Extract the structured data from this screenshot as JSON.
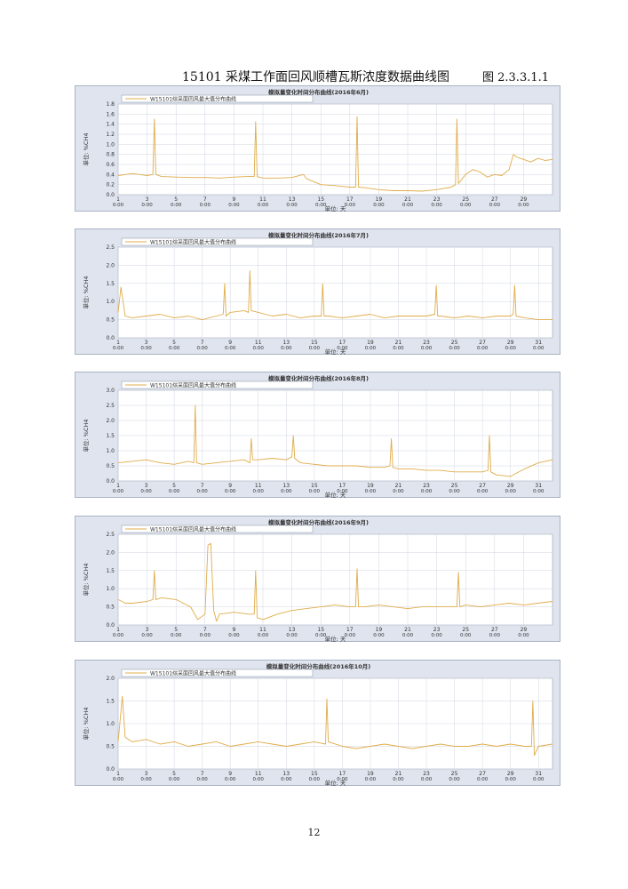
{
  "heading": {
    "title": "15101 采煤工作面回风顺槽瓦斯浓度数据曲线图",
    "figure_label": "图 2.3.3.1.1"
  },
  "page_number": "12",
  "colors": {
    "line": "#e0ac4a",
    "panel_bg": "#dfe4ee",
    "plot_bg": "#ffffff",
    "grid": "#d0d6e2"
  },
  "chart_data": [
    {
      "type": "line",
      "title": "模拟量变化时间分布曲线(2016年6月)",
      "legend": "W15101综采面回风最大值分布曲线",
      "ylabel": "单位: %CH4",
      "xlabel": "单位: 天",
      "ylim": [
        0,
        1.8
      ],
      "yticks": [
        "0.0",
        "0.2",
        "0.4",
        "0.6",
        "0.8",
        "1.0",
        "1.2",
        "1.4",
        "1.6",
        "1.8"
      ],
      "xlim": [
        1,
        31
      ],
      "xticks": [
        "1",
        "3",
        "5",
        "7",
        "9",
        "11",
        "13",
        "15",
        "17",
        "19",
        "21",
        "23",
        "25",
        "27",
        "29"
      ],
      "xtime": "0:00",
      "series": [
        {
          "x": [
            1,
            1.5,
            2,
            2.5,
            3,
            3.4,
            3.5,
            3.6,
            4,
            5,
            6,
            7,
            8,
            9,
            10,
            10.4,
            10.5,
            10.6,
            11,
            12,
            13,
            13.8,
            14,
            15,
            16,
            17,
            17.4,
            17.5,
            17.6,
            18,
            19,
            20,
            21,
            22,
            23,
            24,
            24.3,
            24.4,
            24.5,
            25,
            25.5,
            26,
            26.5,
            27,
            27.5,
            28,
            28.3,
            28.5,
            29,
            29.5,
            30,
            30.5,
            31
          ],
          "y": [
            0.38,
            0.4,
            0.42,
            0.4,
            0.38,
            0.4,
            1.5,
            0.4,
            0.36,
            0.35,
            0.34,
            0.34,
            0.33,
            0.35,
            0.36,
            0.36,
            1.45,
            0.36,
            0.33,
            0.33,
            0.34,
            0.4,
            0.32,
            0.2,
            0.18,
            0.15,
            0.15,
            1.55,
            0.15,
            0.14,
            0.1,
            0.08,
            0.08,
            0.07,
            0.1,
            0.15,
            0.2,
            1.5,
            0.22,
            0.4,
            0.5,
            0.45,
            0.35,
            0.4,
            0.38,
            0.5,
            0.8,
            0.75,
            0.7,
            0.65,
            0.72,
            0.68,
            0.7
          ]
        }
      ]
    },
    {
      "type": "line",
      "title": "模拟量变化时间分布曲线(2016年7月)",
      "legend": "W15101综采面回风最大值分布曲线",
      "ylabel": "单位: %CH4",
      "xlabel": "单位: 天",
      "ylim": [
        0,
        2.5
      ],
      "yticks": [
        "0.0",
        "0.5",
        "1.0",
        "1.5",
        "2.0",
        "2.5"
      ],
      "xlim": [
        1,
        32
      ],
      "xticks": [
        "1",
        "3",
        "5",
        "7",
        "9",
        "11",
        "13",
        "15",
        "17",
        "19",
        "21",
        "23",
        "25",
        "27",
        "29",
        "31"
      ],
      "xtime": "0:00",
      "series": [
        {
          "x": [
            1,
            1.2,
            1.5,
            2,
            3,
            4,
            5,
            6,
            7,
            8,
            8.5,
            8.6,
            8.7,
            9,
            10,
            10.3,
            10.4,
            10.5,
            11,
            12,
            13,
            14,
            15,
            15.5,
            15.6,
            15.7,
            16,
            17,
            18,
            19,
            20,
            21,
            22,
            23,
            23.6,
            23.7,
            23.8,
            24,
            25,
            26,
            27,
            28,
            29,
            29.2,
            29.3,
            29.4,
            30,
            31,
            32
          ],
          "y": [
            0.7,
            1.4,
            0.6,
            0.55,
            0.6,
            0.65,
            0.55,
            0.6,
            0.5,
            0.6,
            0.65,
            1.5,
            0.6,
            0.7,
            0.75,
            0.7,
            1.85,
            0.75,
            0.7,
            0.6,
            0.65,
            0.55,
            0.6,
            0.6,
            1.5,
            0.6,
            0.6,
            0.55,
            0.6,
            0.65,
            0.55,
            0.6,
            0.6,
            0.6,
            0.65,
            1.45,
            0.6,
            0.6,
            0.55,
            0.6,
            0.55,
            0.6,
            0.6,
            0.65,
            1.45,
            0.6,
            0.55,
            0.5,
            0.5
          ]
        }
      ]
    },
    {
      "type": "line",
      "title": "模拟量变化时间分布曲线(2016年8月)",
      "legend": "W15101综采面回风最大值分布曲线",
      "ylabel": "单位: %CH4",
      "xlabel": "单位: 天",
      "ylim": [
        0,
        3.0
      ],
      "yticks": [
        "0.0",
        "0.5",
        "1.0",
        "1.5",
        "2.0",
        "2.5",
        "3.0"
      ],
      "xlim": [
        1,
        32
      ],
      "xticks": [
        "1",
        "3",
        "5",
        "7",
        "9",
        "11",
        "13",
        "15",
        "17",
        "19",
        "21",
        "23",
        "25",
        "27",
        "29",
        "31"
      ],
      "xtime": "0:00",
      "series": [
        {
          "x": [
            1,
            2,
            3,
            4,
            5,
            6,
            6.4,
            6.5,
            6.6,
            7,
            8,
            9,
            10,
            10.4,
            10.5,
            10.6,
            11,
            12,
            13,
            13.4,
            13.5,
            13.6,
            14,
            15,
            16,
            17,
            18,
            19,
            20,
            20.4,
            20.5,
            20.6,
            21,
            22,
            23,
            24,
            25,
            26,
            27,
            27.4,
            27.5,
            27.6,
            28,
            29,
            30,
            31,
            32
          ],
          "y": [
            0.6,
            0.65,
            0.7,
            0.6,
            0.55,
            0.65,
            0.6,
            2.5,
            0.6,
            0.55,
            0.6,
            0.65,
            0.7,
            0.6,
            1.4,
            0.7,
            0.7,
            0.75,
            0.7,
            0.8,
            1.5,
            0.75,
            0.6,
            0.55,
            0.5,
            0.5,
            0.5,
            0.45,
            0.45,
            0.5,
            1.4,
            0.45,
            0.4,
            0.4,
            0.35,
            0.35,
            0.3,
            0.3,
            0.3,
            0.35,
            1.5,
            0.3,
            0.2,
            0.15,
            0.4,
            0.6,
            0.7
          ]
        }
      ]
    },
    {
      "type": "line",
      "title": "模拟量变化时间分布曲线(2016年9月)",
      "legend": "W15101综采面回风最大值分布曲线",
      "ylabel": "单位: %CH4",
      "xlabel": "单位: 天",
      "ylim": [
        0,
        2.5
      ],
      "yticks": [
        "0.0",
        "0.5",
        "1.0",
        "1.5",
        "2.0",
        "2.5"
      ],
      "xlim": [
        1,
        31
      ],
      "xticks": [
        "1",
        "3",
        "5",
        "7",
        "9",
        "11",
        "13",
        "15",
        "17",
        "19",
        "21",
        "23",
        "25",
        "27",
        "29"
      ],
      "xtime": "0:00",
      "series": [
        {
          "x": [
            1,
            1.5,
            2,
            3,
            3.4,
            3.5,
            3.6,
            4,
            5,
            6,
            6.5,
            7,
            7.2,
            7.4,
            7.6,
            7.8,
            8,
            9,
            10,
            10.4,
            10.5,
            10.6,
            11,
            12,
            13,
            14,
            15,
            16,
            17,
            17.4,
            17.5,
            17.6,
            18,
            19,
            20,
            21,
            22,
            23,
            24,
            24.4,
            24.5,
            24.6,
            25,
            26,
            27,
            28,
            29,
            30,
            31
          ],
          "y": [
            0.7,
            0.6,
            0.6,
            0.65,
            0.7,
            1.5,
            0.7,
            0.75,
            0.7,
            0.5,
            0.15,
            0.3,
            2.2,
            2.25,
            0.4,
            0.1,
            0.3,
            0.35,
            0.3,
            0.3,
            1.5,
            0.2,
            0.15,
            0.3,
            0.4,
            0.45,
            0.5,
            0.55,
            0.5,
            0.5,
            1.55,
            0.5,
            0.5,
            0.55,
            0.5,
            0.45,
            0.5,
            0.5,
            0.5,
            0.5,
            1.45,
            0.5,
            0.55,
            0.5,
            0.55,
            0.6,
            0.55,
            0.6,
            0.65
          ]
        }
      ]
    },
    {
      "type": "line",
      "title": "模拟量变化时间分布曲线(2016年10月)",
      "legend": "W15101综采面回风最大值分布曲线",
      "ylabel": "单位: %CH4",
      "xlabel": "单位: 天",
      "ylim": [
        0,
        2.0
      ],
      "yticks": [
        "0.0",
        "0.5",
        "1.0",
        "1.5",
        "2.0"
      ],
      "xlim": [
        1,
        32
      ],
      "xticks": [
        "1",
        "3",
        "5",
        "7",
        "9",
        "11",
        "13",
        "15",
        "17",
        "19",
        "21",
        "23",
        "25",
        "27",
        "29",
        "31"
      ],
      "xtime": "0:00",
      "series": [
        {
          "x": [
            1,
            1.3,
            1.5,
            2,
            3,
            4,
            5,
            6,
            7,
            8,
            9,
            10,
            11,
            12,
            13,
            14,
            15,
            15.8,
            15.9,
            16,
            17,
            18,
            19,
            20,
            21,
            22,
            23,
            24,
            25,
            26,
            27,
            28,
            29,
            30,
            30.5,
            30.6,
            30.7,
            31,
            32
          ],
          "y": [
            0.6,
            1.6,
            0.7,
            0.6,
            0.65,
            0.55,
            0.6,
            0.5,
            0.55,
            0.6,
            0.5,
            0.55,
            0.6,
            0.55,
            0.5,
            0.55,
            0.6,
            0.55,
            1.55,
            0.6,
            0.5,
            0.45,
            0.5,
            0.55,
            0.5,
            0.45,
            0.5,
            0.55,
            0.5,
            0.5,
            0.55,
            0.5,
            0.55,
            0.5,
            0.5,
            1.5,
            0.3,
            0.5,
            0.55
          ]
        }
      ]
    }
  ]
}
